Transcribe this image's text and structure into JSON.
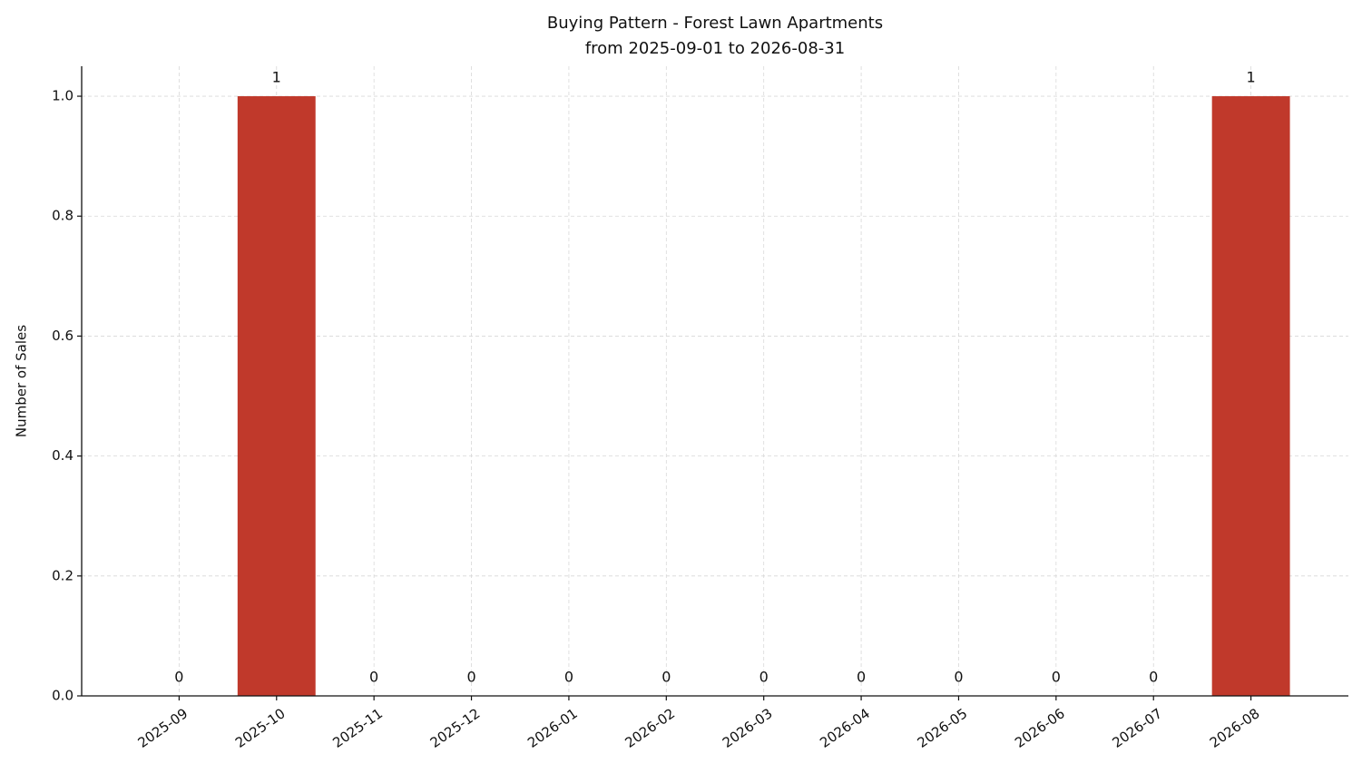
{
  "chart_data": {
    "type": "bar",
    "title": "Buying Pattern - Forest Lawn Apartments",
    "subtitle": "from 2025-09-01 to 2026-08-31",
    "y_label": "Number of Sales",
    "categories": [
      "2025-09",
      "2025-10",
      "2025-11",
      "2025-12",
      "2026-01",
      "2026-02",
      "2026-03",
      "2026-04",
      "2026-05",
      "2026-06",
      "2026-07",
      "2026-08"
    ],
    "values": [
      0,
      1,
      0,
      0,
      0,
      0,
      0,
      0,
      0,
      0,
      0,
      1
    ],
    "color": "#c0392b",
    "ylim": [
      0,
      1.05
    ],
    "yticks": [
      {
        "value": 0,
        "label": "0.0"
      },
      0.2,
      0.4,
      0.6,
      0.8,
      {
        "value": 1,
        "label": "1.0"
      }
    ],
    "grid": true
  }
}
